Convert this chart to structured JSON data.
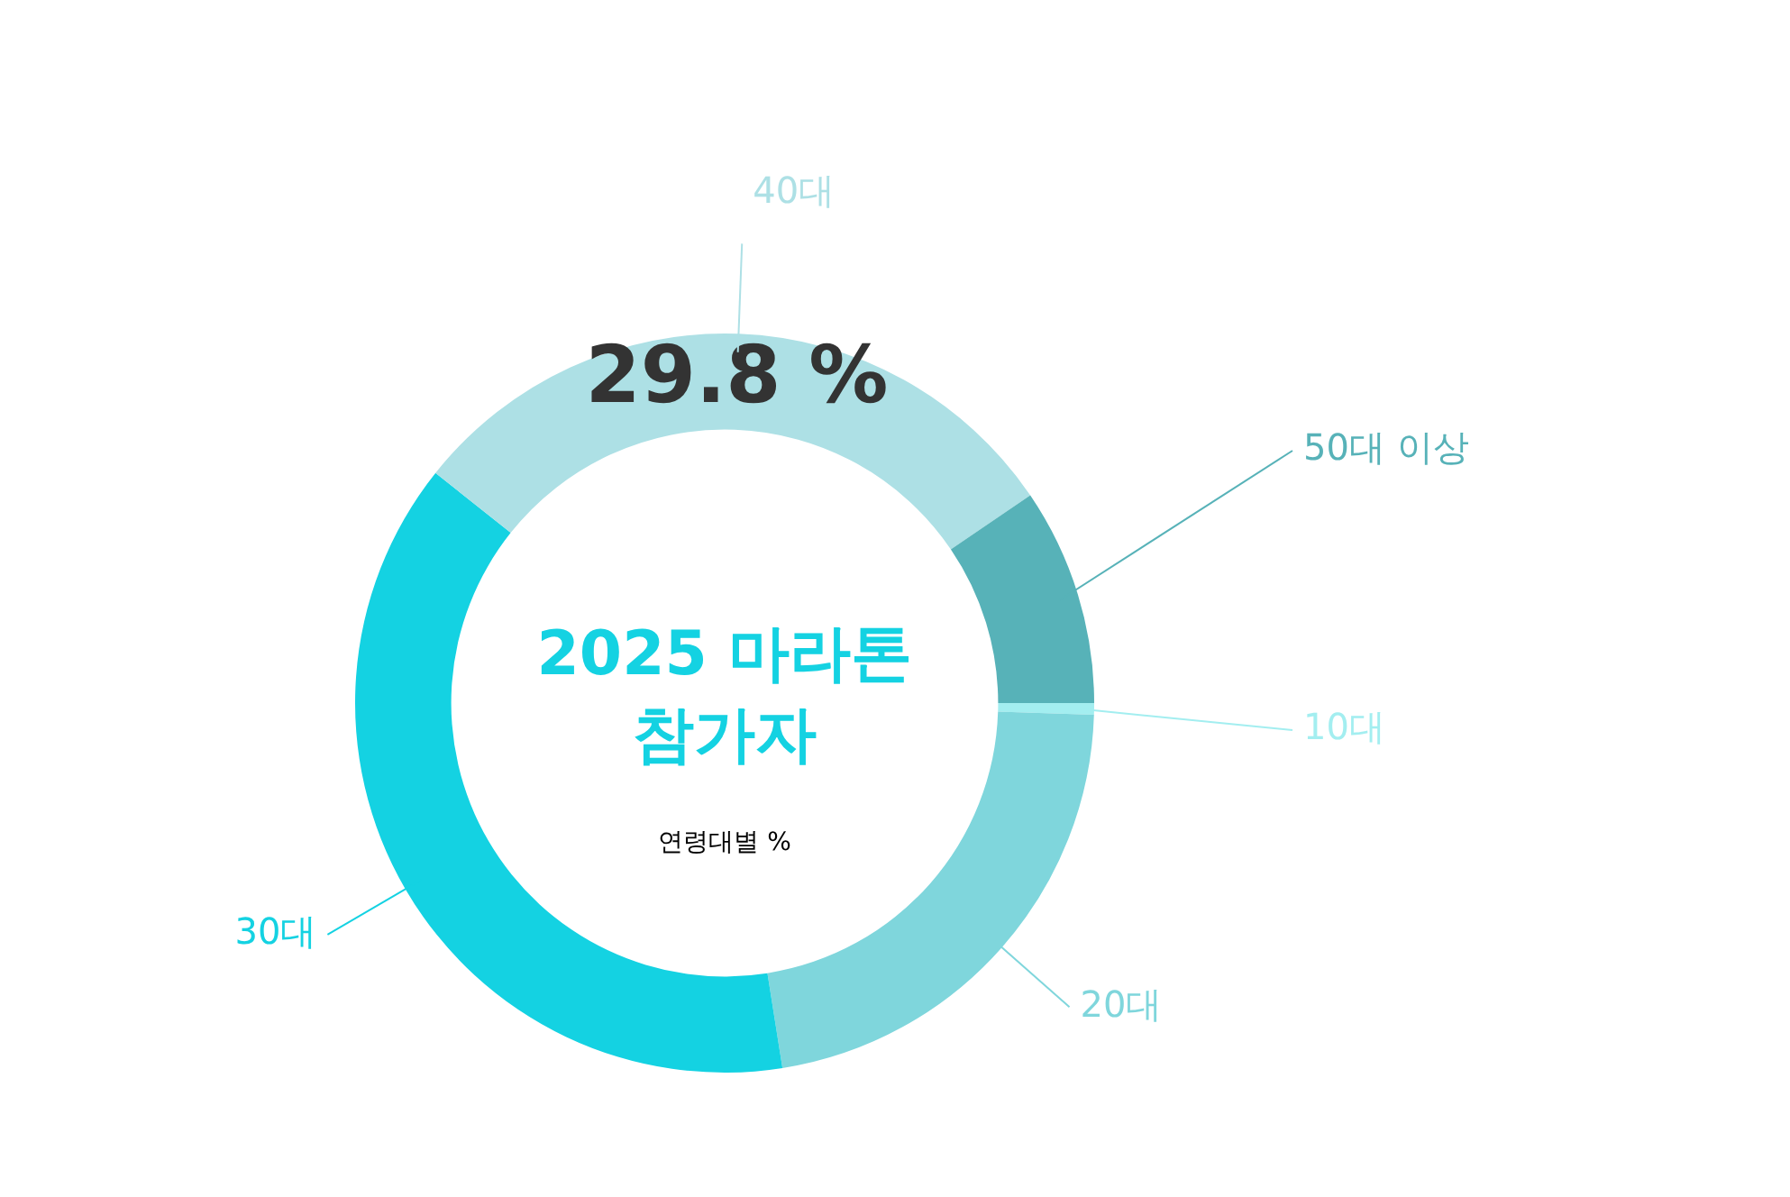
{
  "chart_data": {
    "type": "donut",
    "title": "2025 마라톤 참가자",
    "subtitle": "연령대별 %",
    "categories": [
      "10대",
      "20대",
      "30대",
      "40대",
      "50대 이상"
    ],
    "values": [
      0.5,
      22,
      38.2,
      29.8,
      9.5
    ],
    "colors": [
      "#a3eef0",
      "#7fd6dc",
      "#14d2e2",
      "#ade0e5",
      "#57b2b8"
    ],
    "value_labels": [
      null,
      null,
      null,
      "29.8 %",
      null
    ]
  }
}
